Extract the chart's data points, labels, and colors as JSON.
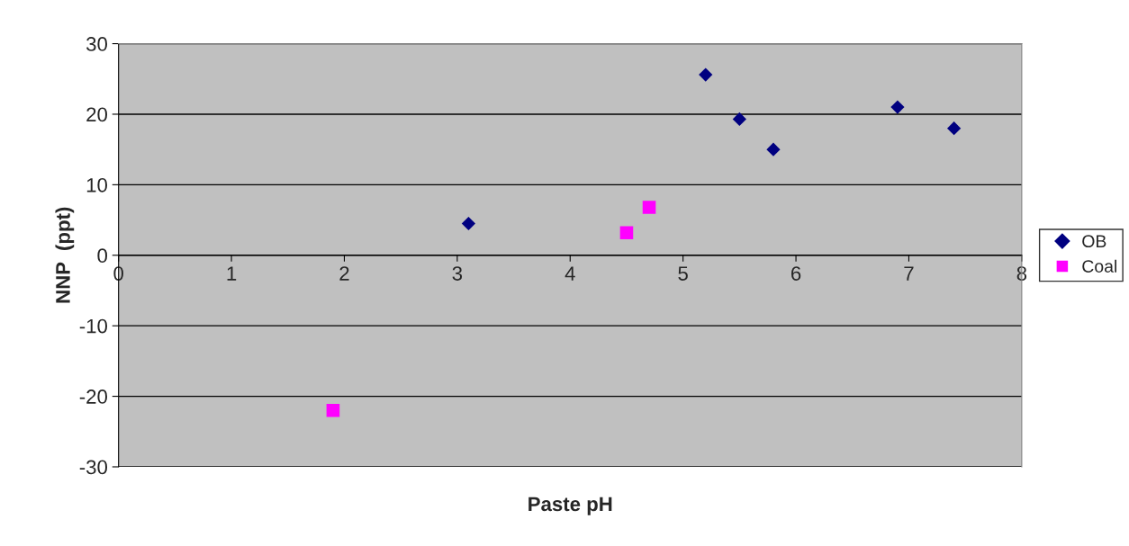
{
  "chart_data": {
    "type": "scatter",
    "xlabel": "Paste pH",
    "ylabel": "NNP  (ppt)",
    "xlim": [
      0,
      8
    ],
    "xticks": [
      0,
      1,
      2,
      3,
      4,
      5,
      6,
      7,
      8
    ],
    "ylim": [
      -30,
      30
    ],
    "yticks": [
      -30,
      -20,
      -10,
      0,
      10,
      20,
      30
    ],
    "grid": "y",
    "legend": "right",
    "series": [
      {
        "name": "OB",
        "color": "#000080",
        "marker": "diamond",
        "x": [
          3.1,
          5.2,
          5.5,
          5.8,
          6.9,
          7.4
        ],
        "values": [
          4.5,
          25.6,
          19.3,
          15,
          21,
          18
        ]
      },
      {
        "name": "Coal",
        "color": "#ff00ff",
        "marker": "square",
        "x": [
          1.9,
          4.5,
          4.7
        ],
        "values": [
          -22,
          3.2,
          6.8
        ]
      }
    ]
  }
}
